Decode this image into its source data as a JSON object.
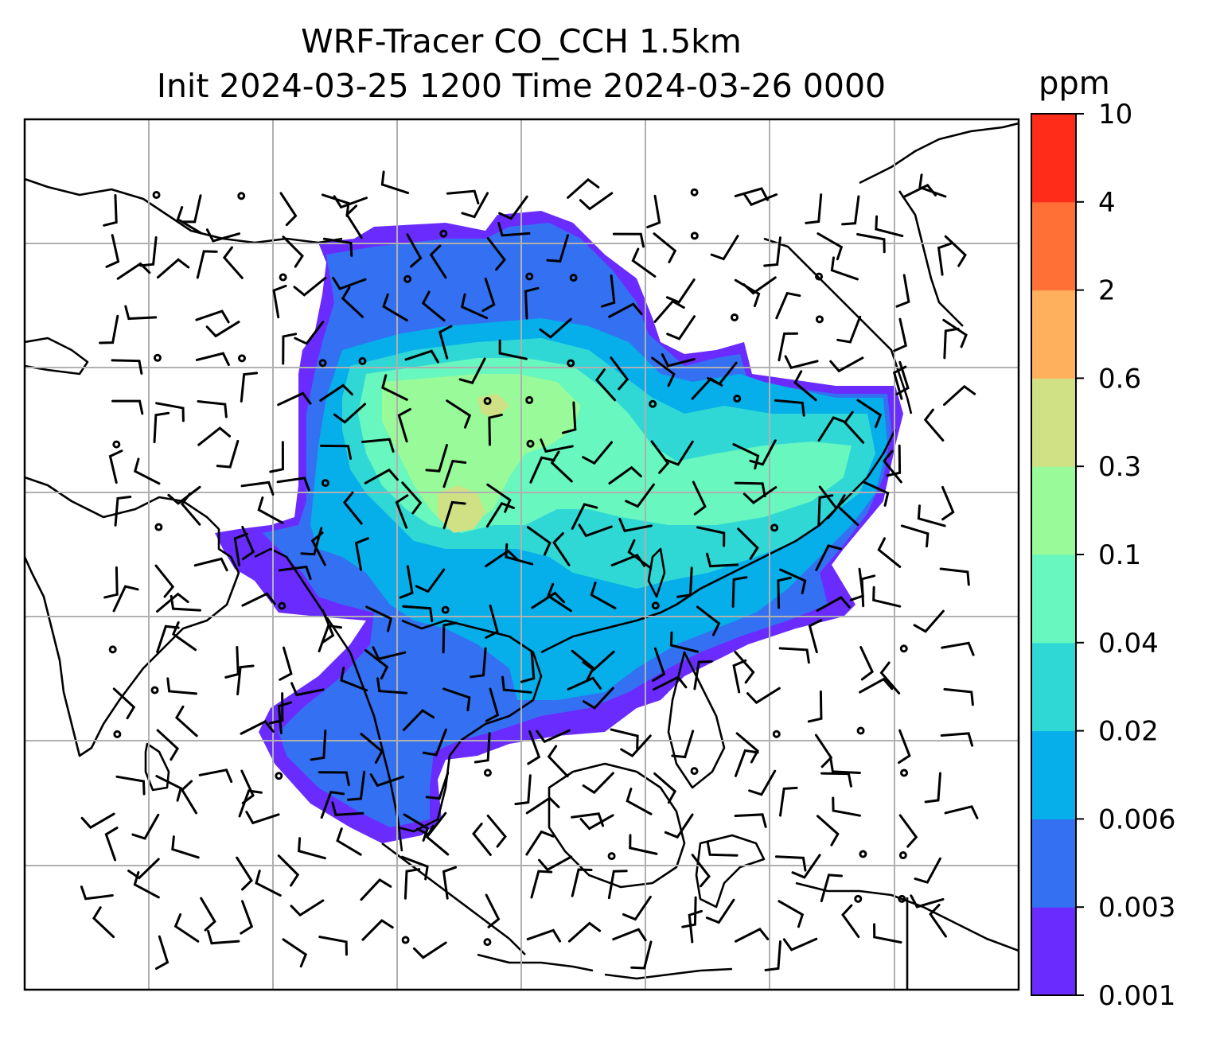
{
  "title": {
    "line1": "WRF-Tracer CO_CCH 1.5km",
    "line2": "Init 2024-03-25 1200 Time 2024-03-26 0000"
  },
  "colorbar": {
    "unit": "ppm",
    "levels": [
      "0.001",
      "0.003",
      "0.006",
      "0.02",
      "0.04",
      "0.1",
      "0.3",
      "0.6",
      "2",
      "4",
      "10"
    ],
    "colors": [
      "#6a2bff",
      "#3371f2",
      "#06aeea",
      "#30d8d5",
      "#67f7bf",
      "#98fa98",
      "#d0e084",
      "#feb05d",
      "#fe7036",
      "#ff2c19"
    ]
  },
  "map_colors": {
    "grid": "#b0b0b0",
    "coast": "#000000",
    "frame": "#000000"
  }
}
